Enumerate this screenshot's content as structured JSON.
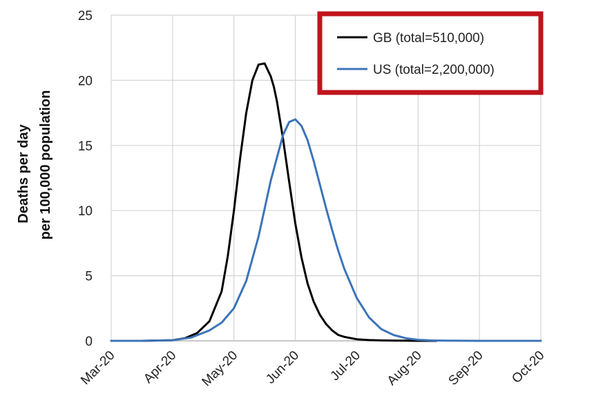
{
  "chart_data": {
    "type": "line",
    "ylabel_lines": [
      "Deaths per day",
      "per 100,000 population"
    ],
    "xlabel": "",
    "x_ticks": [
      "Mar-20",
      "Apr-20",
      "May-20",
      "Jun-20",
      "Jul-20",
      "Aug-20",
      "Sep-20",
      "Oct-20"
    ],
    "y_ticks": [
      "0",
      "5",
      "10",
      "15",
      "20",
      "25"
    ],
    "ylim": [
      0,
      25
    ],
    "grid": true,
    "legend_position": "top-right",
    "legend_box_color": "#c0141c",
    "series": [
      {
        "name": "GB (total=510,000)",
        "color": "#000000",
        "x_month_index": [
          0,
          0.5,
          1.0,
          1.2,
          1.4,
          1.6,
          1.8,
          1.9,
          2.0,
          2.1,
          2.2,
          2.3,
          2.4,
          2.5,
          2.6,
          2.65,
          2.7,
          2.8,
          2.9,
          3.0,
          3.1,
          3.2,
          3.3,
          3.4,
          3.5,
          3.6,
          3.7,
          3.8,
          4.0,
          4.2,
          4.4,
          4.6,
          4.8,
          5.0,
          5.3
        ],
        "values": [
          0,
          0,
          0.05,
          0.2,
          0.6,
          1.5,
          3.8,
          6.5,
          10,
          14,
          17.5,
          20,
          21.2,
          21.3,
          20.3,
          19.5,
          18.4,
          15.5,
          12.2,
          9.0,
          6.4,
          4.4,
          3.0,
          2.0,
          1.3,
          0.8,
          0.45,
          0.3,
          0.12,
          0.06,
          0.03,
          0.02,
          0.01,
          0,
          0
        ]
      },
      {
        "name": "US (total=2,200,000)",
        "color": "#3c74b7",
        "x_month_index": [
          0,
          0.5,
          1.0,
          1.3,
          1.6,
          1.8,
          2.0,
          2.2,
          2.4,
          2.6,
          2.8,
          2.9,
          3.0,
          3.1,
          3.2,
          3.3,
          3.4,
          3.5,
          3.6,
          3.7,
          3.8,
          4.0,
          4.2,
          4.4,
          4.6,
          4.8,
          5.0,
          5.2,
          5.5,
          6.0,
          6.5,
          7.0
        ],
        "values": [
          0,
          0,
          0.05,
          0.25,
          0.8,
          1.4,
          2.5,
          4.6,
          8.0,
          12.3,
          15.8,
          16.8,
          17.0,
          16.5,
          15.4,
          13.8,
          12.0,
          10.2,
          8.5,
          6.9,
          5.5,
          3.3,
          1.8,
          0.9,
          0.45,
          0.2,
          0.08,
          0.03,
          0.01,
          0,
          0,
          0
        ]
      }
    ]
  }
}
